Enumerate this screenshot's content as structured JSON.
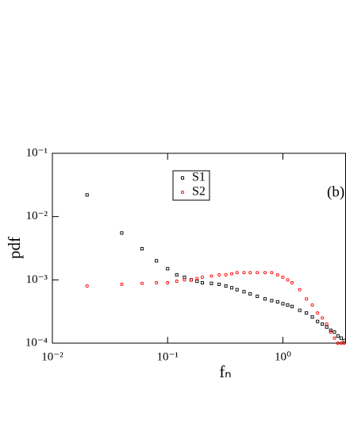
{
  "chart_data": {
    "type": "scatter",
    "xlabel": "fₙ",
    "ylabel": "pdf",
    "annotation": "(b)",
    "x": [
      0.02,
      0.04,
      0.06,
      0.08,
      0.1,
      0.12,
      0.14,
      0.16,
      0.18,
      0.2,
      0.24,
      0.28,
      0.32,
      0.36,
      0.4,
      0.46,
      0.52,
      0.6,
      0.7,
      0.8,
      0.9,
      1.0,
      1.1,
      1.2,
      1.4,
      1.6,
      1.8,
      2.0,
      2.2,
      2.4,
      2.6,
      2.8,
      3.0,
      3.2,
      3.4
    ],
    "series": [
      {
        "name": "S1",
        "color": "#000000",
        "marker": "square",
        "values": [
          0.022,
          0.0055,
          0.0031,
          0.002,
          0.0015,
          0.0012,
          0.0011,
          0.001,
          0.00095,
          0.0009,
          0.00088,
          0.00085,
          0.0008,
          0.00075,
          0.0007,
          0.00065,
          0.0006,
          0.00055,
          0.0005,
          0.00047,
          0.00045,
          0.00042,
          0.0004,
          0.00038,
          0.00033,
          0.0003,
          0.00026,
          0.00022,
          0.0002,
          0.00018,
          0.00016,
          0.00015,
          0.00013,
          0.00012,
          0.00011
        ]
      },
      {
        "name": "S2",
        "color": "#ff0000",
        "marker": "circle",
        "values": [
          0.0008,
          0.00085,
          0.00088,
          0.0009,
          0.0009,
          0.00095,
          0.001,
          0.001,
          0.00105,
          0.0011,
          0.00115,
          0.0012,
          0.0012,
          0.00125,
          0.0013,
          0.0013,
          0.0013,
          0.0013,
          0.0013,
          0.0013,
          0.0012,
          0.0011,
          0.001,
          0.0009,
          0.0007,
          0.0005,
          0.0004,
          0.0003,
          0.00025,
          0.0002,
          0.00015,
          0.00012,
          0.0001,
          0.0001,
          0.0001
        ]
      }
    ],
    "xscale": "log",
    "yscale": "log",
    "xlim": [
      0.01,
      3.5
    ],
    "ylim": [
      0.0001,
      0.1
    ],
    "xticks": [
      {
        "value": 0.01,
        "label": "10⁻²"
      },
      {
        "value": 0.1,
        "label": "10⁻¹"
      },
      {
        "value": 1,
        "label": "10⁰"
      }
    ],
    "yticks": [
      {
        "value": 0.0001,
        "label": "10⁻⁴"
      },
      {
        "value": 0.001,
        "label": "10⁻³"
      },
      {
        "value": 0.01,
        "label": "10⁻²"
      },
      {
        "value": 0.1,
        "label": "10⁻¹"
      }
    ],
    "grid": false
  }
}
